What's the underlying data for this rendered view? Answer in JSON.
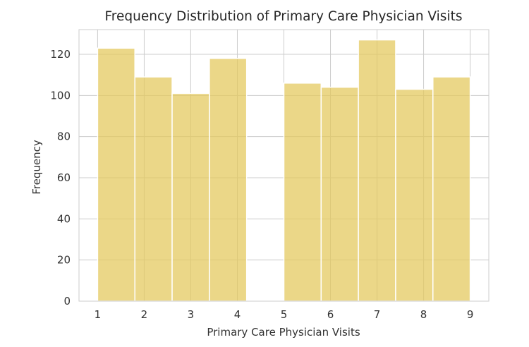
{
  "chart_data": {
    "type": "bar",
    "title": "Frequency Distribution of Primary Care Physician Visits",
    "xlabel": "Primary Care Physician Visits",
    "ylabel": "Frequency",
    "xlim": [
      0.6,
      9.4
    ],
    "ylim": [
      0,
      132
    ],
    "x_ticks": [
      1,
      2,
      3,
      4,
      5,
      6,
      7,
      8,
      9
    ],
    "y_ticks": [
      0,
      20,
      40,
      60,
      80,
      100,
      120
    ],
    "bins": [
      {
        "start": 1.0,
        "end": 1.8,
        "value": 123
      },
      {
        "start": 1.8,
        "end": 2.6,
        "value": 109
      },
      {
        "start": 2.6,
        "end": 3.4,
        "value": 101
      },
      {
        "start": 3.4,
        "end": 4.2,
        "value": 118
      },
      {
        "start": 4.2,
        "end": 5.0,
        "value": 0
      },
      {
        "start": 5.0,
        "end": 5.8,
        "value": 106
      },
      {
        "start": 5.8,
        "end": 6.6,
        "value": 104
      },
      {
        "start": 6.6,
        "end": 7.4,
        "value": 127
      },
      {
        "start": 7.4,
        "end": 8.2,
        "value": 103
      },
      {
        "start": 8.2,
        "end": 9.0,
        "value": 109
      }
    ],
    "bar_color": "#e3c75a",
    "grid": true,
    "legend": "none"
  }
}
